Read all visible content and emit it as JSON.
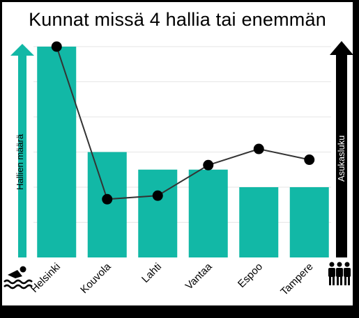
{
  "chart_data": {
    "type": "bar",
    "title": "Kunnat missä 4 hallia tai enemmän",
    "categories": [
      "Helsinki",
      "Kouvola",
      "Lahti",
      "Vantaa",
      "Espoo",
      "Tampere"
    ],
    "series": [
      {
        "name": "Hallien määrä",
        "type": "bar",
        "axis": "left",
        "values": [
          12,
          6,
          5,
          5,
          4,
          4
        ]
      },
      {
        "name": "Asukasluku",
        "type": "line",
        "axis": "right",
        "values": [
          1.0,
          0.15,
          0.17,
          0.34,
          0.43,
          0.37
        ]
      }
    ],
    "ylabel": "Hallien määrä",
    "y2label": "Asukasluku",
    "ylim": [
      0,
      12
    ],
    "grid": true,
    "legend": "none",
    "colors": {
      "bars": "#12b8a6",
      "left_arrow": "#12b8a6",
      "right_arrow": "#000000",
      "line": "#333333",
      "markers": "#000000",
      "grid": "#e6e6e6"
    },
    "icons": {
      "left": "swimmer-icon",
      "right": "people-icon"
    }
  }
}
